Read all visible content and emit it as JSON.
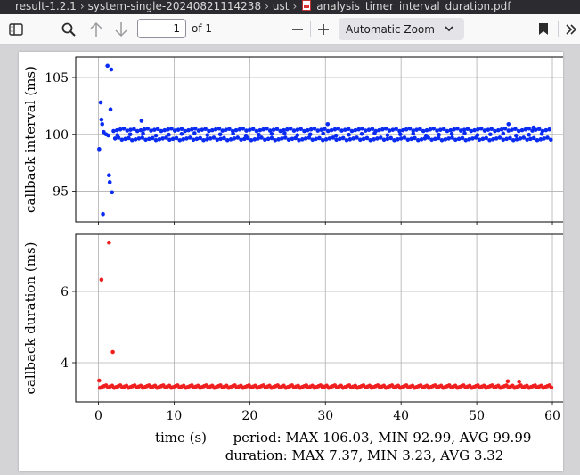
{
  "breadcrumb": {
    "items": [
      "result-1.2.1",
      "system-single-20240821114238",
      "ust"
    ],
    "file_name": "analysis_timer_interval_duration.pdf"
  },
  "toolbar": {
    "icons": [
      "sidebar-toggle-icon",
      "search-icon",
      "arrow-up-icon",
      "arrow-down-icon",
      "minus-icon",
      "plus-icon",
      "chevron-down-icon",
      "bookmark-icon",
      "double-chevron-right-icon"
    ],
    "page_number": "1",
    "page_count": "of 1",
    "zoom": "Automatic Zoom"
  },
  "figure": {
    "xlabel": "time (s)",
    "stats_line_1": "period: MAX 106.03, MIN 92.99, AVG 99.99",
    "stats_line_2": "duration: MAX 7.37, MIN 3.23, AVG 3.32",
    "interval_color": "#0a2cf2",
    "duration_color": "#f02020"
  },
  "chart_data": [
    {
      "type": "scatter",
      "ylabel": "callback interval (ms)",
      "xlim": [
        -3,
        62
      ],
      "ylim": [
        92.3,
        106.8
      ],
      "yticks": [
        95,
        100,
        105
      ],
      "xticks": [
        0,
        10,
        20,
        30,
        40,
        50,
        60
      ],
      "grid": true,
      "outliers": [
        [
          0.1,
          98.7
        ],
        [
          0.3,
          102.8
        ],
        [
          0.4,
          101.3
        ],
        [
          0.5,
          100.9
        ],
        [
          0.6,
          92.99
        ],
        [
          0.7,
          100.2
        ],
        [
          1.0,
          100.0
        ],
        [
          1.2,
          106.03
        ],
        [
          1.3,
          99.9
        ],
        [
          1.4,
          96.4
        ],
        [
          1.5,
          95.8
        ],
        [
          1.6,
          102.2
        ],
        [
          1.7,
          105.7
        ],
        [
          1.8,
          94.9
        ],
        [
          5.7,
          101.2
        ],
        [
          30.3,
          100.9
        ],
        [
          54.2,
          100.9
        ],
        [
          57.5,
          100.6
        ]
      ],
      "bands": [
        {
          "y": 100.4,
          "x_start": 2.0,
          "x_end": 60.0,
          "step": 0.45
        },
        {
          "y": 99.6,
          "x_start": 2.2,
          "x_end": 60.0,
          "step": 0.45
        },
        {
          "y": 100.0,
          "x_start": 2.5,
          "x_end": 60.0,
          "step": 1.7
        }
      ]
    },
    {
      "type": "scatter",
      "ylabel": "callback duration (ms)",
      "xlim": [
        -3,
        62
      ],
      "ylim": [
        2.9,
        7.6
      ],
      "yticks": [
        4,
        6
      ],
      "xticks": [
        0,
        10,
        20,
        30,
        40,
        50,
        60
      ],
      "grid": true,
      "outliers": [
        [
          0.1,
          3.5
        ],
        [
          0.4,
          6.33
        ],
        [
          1.4,
          7.37
        ],
        [
          1.9,
          4.3
        ],
        [
          54.1,
          3.48
        ],
        [
          55.6,
          3.47
        ]
      ],
      "bands": [
        {
          "y": 3.33,
          "x_start": 0.2,
          "x_end": 60.0,
          "step": 0.27
        }
      ]
    }
  ]
}
